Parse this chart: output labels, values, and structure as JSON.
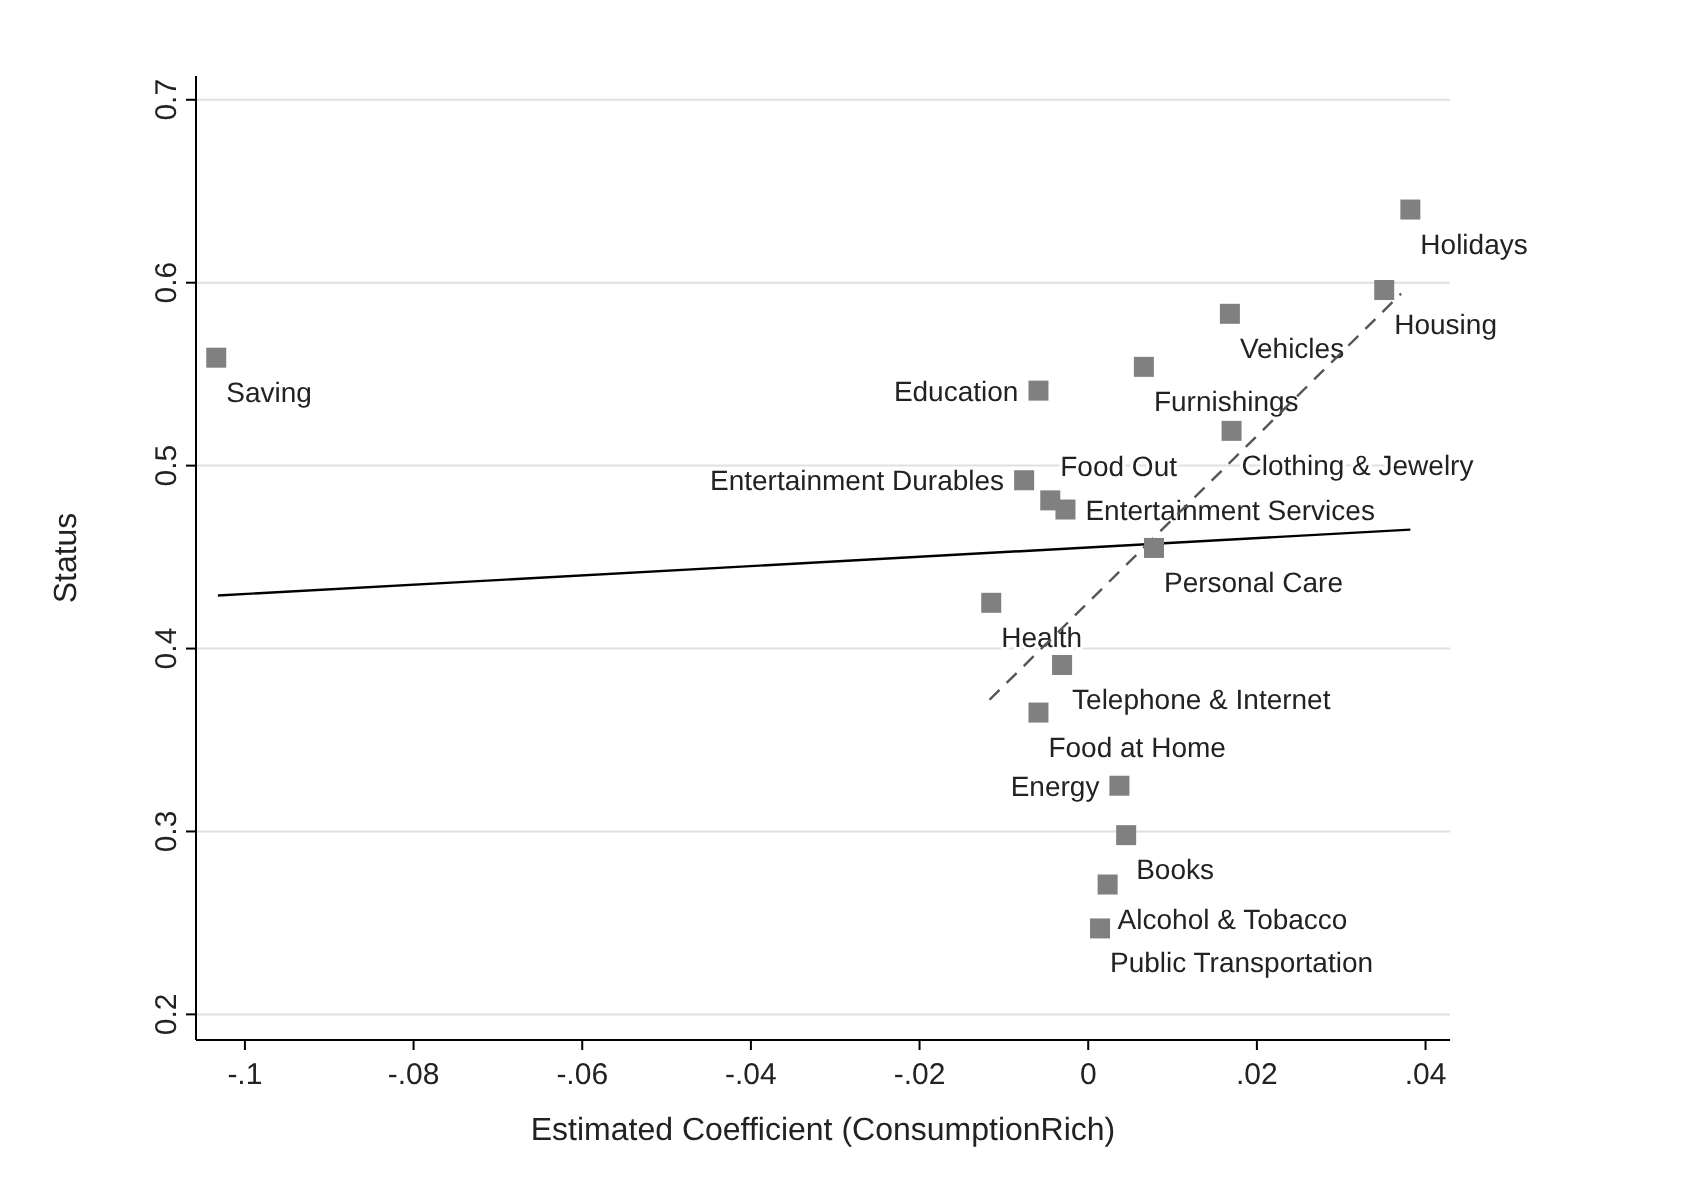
{
  "chart_data": {
    "type": "scatter",
    "xlabel": "Estimated Coefficient (ConsumptionRich)",
    "ylabel": "Status",
    "xlim": [
      -0.1058,
      0.0429
    ],
    "ylim": [
      0.186,
      0.713
    ],
    "xticks": [
      {
        "value": -0.1,
        "label": "-.1"
      },
      {
        "value": -0.08,
        "label": "-.08"
      },
      {
        "value": -0.06,
        "label": "-.06"
      },
      {
        "value": -0.04,
        "label": "-.04"
      },
      {
        "value": -0.02,
        "label": "-.02"
      },
      0,
      {
        "value": 0.02,
        "label": ".02"
      },
      {
        "value": 0.04,
        "label": ".04"
      }
    ],
    "yticks": [
      0.2,
      0.3,
      0.4,
      0.5,
      0.6,
      0.7
    ],
    "grid": "y",
    "series": [
      {
        "type": "scatter",
        "color": "#808080",
        "marker": "square",
        "x": [
          -0.1034,
          0.0382,
          0.0351,
          0.0168,
          0.0066,
          -0.0059,
          0.017,
          -0.0076,
          -0.0045,
          -0.0027,
          0.0078,
          -0.0115,
          -0.0031,
          -0.0059,
          0.0037,
          0.0045,
          0.0023,
          0.0014
        ],
        "values": [
          0.559,
          0.64,
          0.596,
          0.583,
          0.554,
          0.541,
          0.519,
          0.492,
          0.481,
          0.476,
          0.455,
          0.425,
          0.391,
          0.365,
          0.325,
          0.298,
          0.271,
          0.247
        ]
      },
      {
        "type": "line",
        "color": "#000000",
        "line_style": "solid",
        "marker": "none",
        "x": [
          -0.1032,
          0.0382
        ],
        "values": [
          0.429,
          0.465
        ]
      },
      {
        "type": "line",
        "color": "#555555",
        "line_style": "dashed",
        "marker": "none",
        "x": [
          -0.0117,
          0.0371
        ],
        "values": [
          0.372,
          0.594
        ]
      }
    ],
    "annotations": [
      {
        "text": "Saving",
        "x": -0.1034,
        "y": 0.559
      },
      {
        "text": "Holidays",
        "x": 0.0382,
        "y": 0.64
      },
      {
        "text": "Housing",
        "x": 0.0351,
        "y": 0.596
      },
      {
        "text": "Vehicles",
        "x": 0.0168,
        "y": 0.583
      },
      {
        "text": "Furnishings",
        "x": 0.0066,
        "y": 0.554
      },
      {
        "text": "Education",
        "x": -0.0059,
        "y": 0.541
      },
      {
        "text": "Clothing & Jewelry",
        "x": 0.017,
        "y": 0.519
      },
      {
        "text": "Entertainment Durables",
        "x": -0.0076,
        "y": 0.492
      },
      {
        "text": "Food Out",
        "x": -0.0045,
        "y": 0.481
      },
      {
        "text": "Entertainment Services",
        "x": -0.0027,
        "y": 0.476
      },
      {
        "text": "Personal Care",
        "x": 0.0078,
        "y": 0.455
      },
      {
        "text": "Health",
        "x": -0.0115,
        "y": 0.425
      },
      {
        "text": "Telephone & Internet",
        "x": -0.0031,
        "y": 0.391
      },
      {
        "text": "Food at Home",
        "x": -0.0059,
        "y": 0.365
      },
      {
        "text": "Energy",
        "x": 0.0037,
        "y": 0.325
      },
      {
        "text": "Books",
        "x": 0.0045,
        "y": 0.298
      },
      {
        "text": "Alcohol & Tobacco",
        "x": 0.0023,
        "y": 0.271
      },
      {
        "text": "Public Transportation",
        "x": 0.0014,
        "y": 0.247
      }
    ]
  }
}
